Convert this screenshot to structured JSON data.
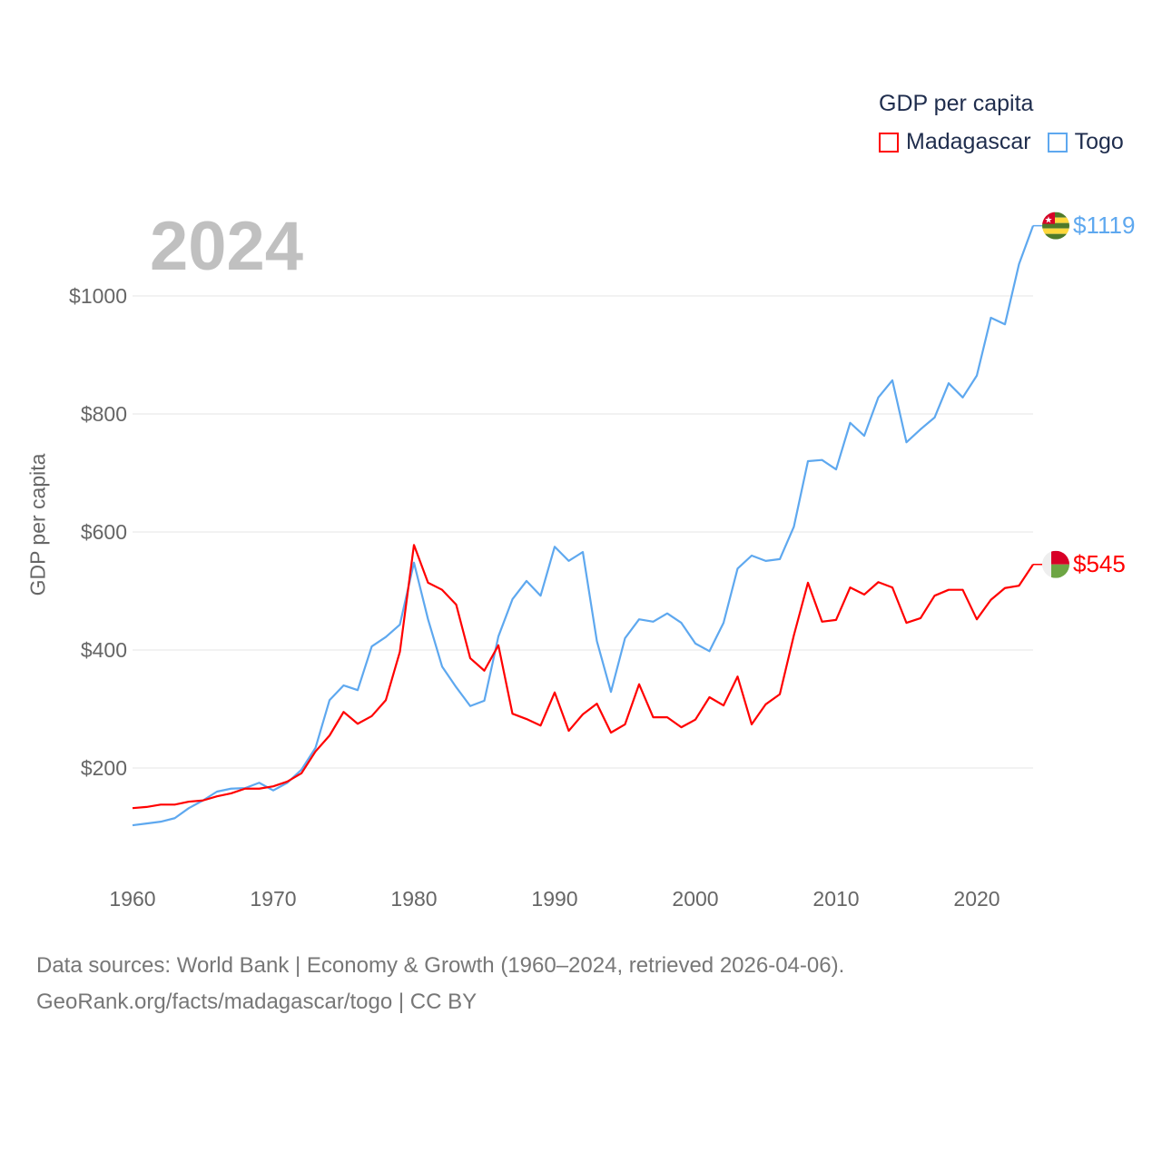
{
  "chart_data": {
    "type": "line",
    "title": "GDP per capita",
    "year_label": "2024",
    "xlabel": "",
    "ylabel": "GDP per capita",
    "xlim": [
      1960,
      2024
    ],
    "ylim": [
      100,
      1150
    ],
    "x_ticks": [
      1960,
      1970,
      1980,
      1990,
      2000,
      2010,
      2020
    ],
    "y_ticks": [
      200,
      400,
      600,
      800,
      1000
    ],
    "y_tick_labels": [
      "$200",
      "$400",
      "$600",
      "$800",
      "$1000"
    ],
    "grid": true,
    "legend_position": "top-right",
    "x": [
      1960,
      1961,
      1962,
      1963,
      1964,
      1965,
      1966,
      1967,
      1968,
      1969,
      1970,
      1971,
      1972,
      1973,
      1974,
      1975,
      1976,
      1977,
      1978,
      1979,
      1980,
      1981,
      1982,
      1983,
      1984,
      1985,
      1986,
      1987,
      1988,
      1989,
      1990,
      1991,
      1992,
      1993,
      1994,
      1995,
      1996,
      1997,
      1998,
      1999,
      2000,
      2001,
      2002,
      2003,
      2004,
      2005,
      2006,
      2007,
      2008,
      2009,
      2010,
      2011,
      2012,
      2013,
      2014,
      2015,
      2016,
      2017,
      2018,
      2019,
      2020,
      2021,
      2022,
      2023,
      2024
    ],
    "series": [
      {
        "name": "Madagascar",
        "color": "#ff0000",
        "end_label": "$545",
        "values": [
          132,
          134,
          138,
          138,
          143,
          145,
          152,
          157,
          165,
          165,
          169,
          177,
          191,
          228,
          255,
          295,
          275,
          288,
          315,
          397,
          578,
          514,
          502,
          477,
          386,
          365,
          408,
          292,
          283,
          272,
          328,
          263,
          291,
          309,
          260,
          274,
          342,
          286,
          286,
          269,
          282,
          320,
          306,
          355,
          274,
          308,
          325,
          425,
          514,
          448,
          451,
          506,
          494,
          515,
          506,
          446,
          454,
          492,
          502,
          502,
          452,
          485,
          505,
          509,
          545
        ]
      },
      {
        "name": "Togo",
        "color": "#5ea8ef",
        "end_label": "$1119",
        "values": [
          103,
          106,
          109,
          115,
          132,
          145,
          160,
          165,
          166,
          175,
          162,
          175,
          197,
          234,
          315,
          340,
          332,
          406,
          422,
          443,
          548,
          452,
          372,
          337,
          305,
          314,
          423,
          486,
          517,
          492,
          575,
          551,
          566,
          415,
          329,
          420,
          452,
          448,
          462,
          446,
          411,
          398,
          446,
          538,
          560,
          551,
          554,
          609,
          720,
          722,
          706,
          785,
          763,
          828,
          857,
          752,
          774,
          794,
          852,
          828,
          865,
          963,
          952,
          1054,
          1119
        ]
      }
    ]
  },
  "footer": {
    "line1": "Data sources: World Bank | Economy & Growth (1960–2024, retrieved 2026-04-06).",
    "line2": "GeoRank.org/facts/madagascar/togo | CC BY"
  }
}
